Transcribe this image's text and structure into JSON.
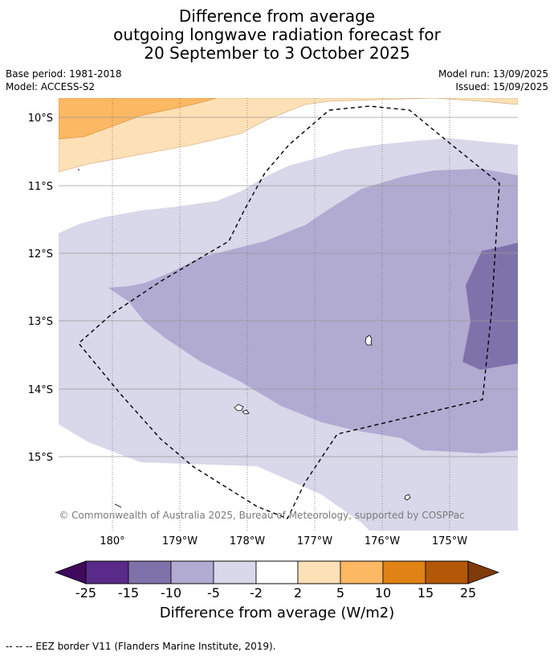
{
  "title": {
    "line1": "Difference from average",
    "line2": "outgoing longwave radiation forecast for",
    "line3": "20 September to 3 October 2025"
  },
  "meta": {
    "base_period": "Base period: 1981-2018",
    "model": "Model: ACCESS-S2",
    "model_run": "Model run: 13/09/2025",
    "issued": "Issued: 15/09/2025"
  },
  "map": {
    "lon_ticks": [
      "180°",
      "179°W",
      "178°W",
      "177°W",
      "176°W",
      "175°W"
    ],
    "lat_ticks": [
      "10°S",
      "11°S",
      "12°S",
      "13°S",
      "14°S",
      "15°S"
    ],
    "copyright": "© Commonwealth of Australia 2025, Bureau of Meteorology, supported by COSPPac"
  },
  "colorbar": {
    "ticks": [
      "-25",
      "-15",
      "-10",
      "-5",
      "-2",
      "2",
      "5",
      "10",
      "15",
      "25"
    ],
    "colors": [
      "#3f0a5c",
      "#5a2a8a",
      "#7f72ab",
      "#b1aad1",
      "#d8d8ea",
      "#ffffff",
      "#fee0b6",
      "#fdb863",
      "#e08214",
      "#b35806",
      "#7f3b08"
    ],
    "label": "Difference from average (W/m2)"
  },
  "footnote": "--  --  -- EEZ border V11 (Flanders Marine Institute, 2019)."
}
